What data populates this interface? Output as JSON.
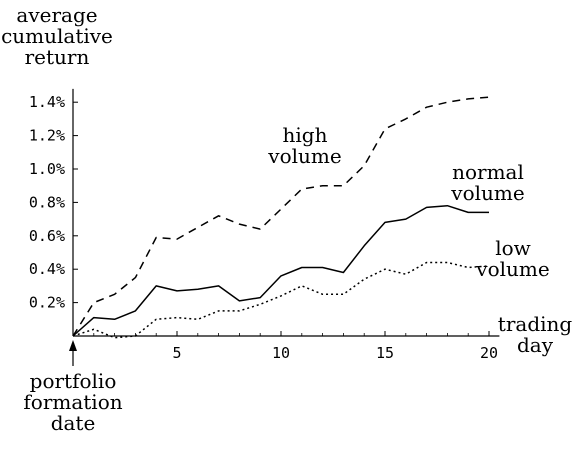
{
  "chart_data": {
    "type": "line",
    "ylabel": [
      "average",
      "cumulative",
      "return"
    ],
    "xlabel": [
      "trading",
      "day"
    ],
    "annotation": [
      "portfolio",
      "formation",
      "date"
    ],
    "xlim": [
      0,
      20.5
    ],
    "ylim": [
      0,
      1.48
    ],
    "x_ticks": [
      5,
      10,
      15,
      20
    ],
    "y_ticks": [
      0.2,
      0.4,
      0.6,
      0.8,
      1.0,
      1.2,
      1.4
    ],
    "y_tick_labels": [
      "0.2%",
      "0.4%",
      "0.6%",
      "0.8%",
      "1.0%",
      "1.2%",
      "1.4%"
    ],
    "x": [
      0,
      1,
      2,
      3,
      4,
      5,
      6,
      7,
      8,
      9,
      10,
      11,
      12,
      13,
      14,
      15,
      16,
      17,
      18,
      19,
      20
    ],
    "series": [
      {
        "name_lines": [
          "high",
          "volume"
        ],
        "style": "dashed",
        "values": [
          0.0,
          0.2,
          0.25,
          0.35,
          0.59,
          0.58,
          0.65,
          0.72,
          0.67,
          0.64,
          0.76,
          0.88,
          0.9,
          0.9,
          1.02,
          1.24,
          1.3,
          1.37,
          1.4,
          1.42,
          1.43
        ]
      },
      {
        "name_lines": [
          "normal",
          "volume"
        ],
        "style": "solid",
        "values": [
          0.0,
          0.11,
          0.1,
          0.15,
          0.3,
          0.27,
          0.28,
          0.3,
          0.21,
          0.23,
          0.36,
          0.41,
          0.41,
          0.38,
          0.54,
          0.68,
          0.7,
          0.77,
          0.78,
          0.74,
          0.74
        ]
      },
      {
        "name_lines": [
          "low",
          "volume"
        ],
        "style": "dotted",
        "values": [
          0.0,
          0.04,
          -0.01,
          0.0,
          0.1,
          0.11,
          0.1,
          0.15,
          0.15,
          0.19,
          0.24,
          0.3,
          0.25,
          0.25,
          0.34,
          0.4,
          0.37,
          0.44,
          0.44,
          0.41,
          0.42
        ]
      }
    ]
  }
}
